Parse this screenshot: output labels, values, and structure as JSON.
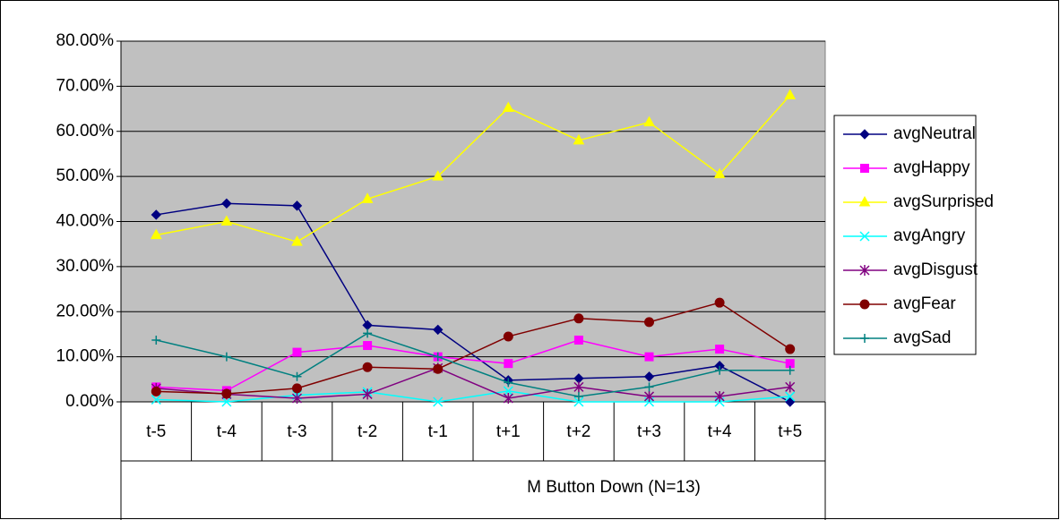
{
  "chart_data": {
    "type": "line",
    "categories": [
      "t-5",
      "t-4",
      "t-3",
      "t-2",
      "t-1",
      "t+1",
      "t+2",
      "t+3",
      "t+4",
      "t+5"
    ],
    "group_label": "M Button Down (N=13)",
    "ylim": [
      0,
      80
    ],
    "yticks": [
      {
        "value": 0,
        "label": "0.00%"
      },
      {
        "value": 10,
        "label": "10.00%"
      },
      {
        "value": 20,
        "label": "20.00%"
      },
      {
        "value": 30,
        "label": "30.00%"
      },
      {
        "value": 40,
        "label": "40.00%"
      },
      {
        "value": 50,
        "label": "50.00%"
      },
      {
        "value": 60,
        "label": "60.00%"
      },
      {
        "value": 70,
        "label": "70.00%"
      },
      {
        "value": 80,
        "label": "80.00%"
      }
    ],
    "grid": true,
    "legend": "right",
    "series": [
      {
        "name": "avgNeutral",
        "color": "#000080",
        "marker": "diamond",
        "values": [
          41.5,
          44,
          43.5,
          17,
          16,
          4.8,
          5.2,
          5.6,
          8,
          0
        ]
      },
      {
        "name": "avgHappy",
        "color": "#ff00ff",
        "marker": "square",
        "values": [
          3.3,
          2.5,
          11,
          12.5,
          10,
          8.5,
          13.7,
          10,
          11.7,
          8.5
        ]
      },
      {
        "name": "avgSurprised",
        "color": "#ffff00",
        "marker": "triangle",
        "values": [
          37,
          40,
          35.5,
          45,
          50,
          65.2,
          58,
          62,
          50.5,
          68
        ]
      },
      {
        "name": "avgAngry",
        "color": "#00ffff",
        "marker": "x",
        "values": [
          0.5,
          0,
          1.5,
          2.2,
          0,
          2.4,
          0,
          0,
          0,
          1.2
        ]
      },
      {
        "name": "avgDisgust",
        "color": "#800080",
        "marker": "asterisk",
        "values": [
          3,
          1.7,
          0.8,
          1.7,
          7.5,
          0.8,
          3.3,
          1.2,
          1.2,
          3.3
        ]
      },
      {
        "name": "avgFear",
        "color": "#800000",
        "marker": "circle",
        "values": [
          2.3,
          1.8,
          3,
          7.7,
          7.3,
          14.5,
          18.5,
          17.7,
          22,
          11.7
        ]
      },
      {
        "name": "avgSad",
        "color": "#008080",
        "marker": "plus",
        "values": [
          13.7,
          10,
          5.6,
          15.2,
          10,
          4.3,
          1.2,
          3.3,
          7,
          7
        ]
      }
    ]
  }
}
